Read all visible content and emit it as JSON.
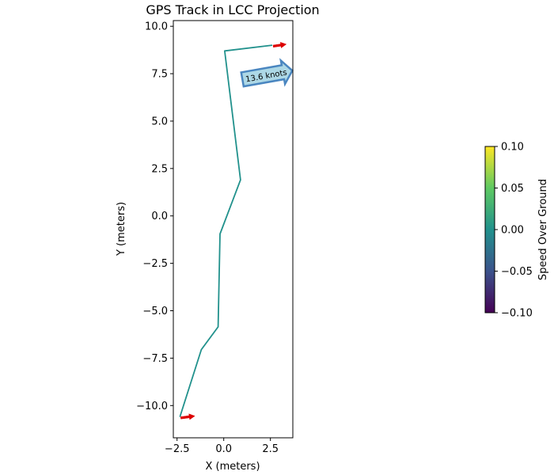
{
  "chart_data": {
    "type": "line",
    "title": "GPS Track in LCC Projection",
    "xlabel": "X (meters)",
    "ylabel": "Y (meters)",
    "xlim": [
      -2.7,
      3.7
    ],
    "ylim": [
      -11.7,
      10.3
    ],
    "xticks": [
      -2.5,
      0.0,
      2.5
    ],
    "xtick_labels": [
      "−2.5",
      "0.0",
      "2.5"
    ],
    "yticks": [
      10.0,
      7.5,
      5.0,
      2.5,
      0.0,
      -2.5,
      -5.0,
      -7.5,
      -10.0
    ],
    "ytick_labels": [
      "10.0",
      "7.5",
      "5.0",
      "2.5",
      "0.0",
      "−2.5",
      "−5.0",
      "−7.5",
      "−10.0"
    ],
    "grid": false,
    "series": [
      {
        "color": "#21918c",
        "x": [
          -2.35,
          -1.2,
          -0.3,
          -0.2,
          0.9,
          0.05,
          2.6
        ],
        "y": [
          -10.6,
          -7.05,
          -5.85,
          -0.95,
          1.9,
          8.7,
          9.0
        ]
      }
    ],
    "arrows": [
      {
        "x": -2.3,
        "y": -10.65,
        "dx": 0.75,
        "dy": 0.1,
        "color": "#dd0000"
      },
      {
        "x": 2.65,
        "y": 8.95,
        "dx": 0.7,
        "dy": 0.1,
        "color": "#dd0000"
      }
    ],
    "annotation": {
      "text": "13.6 knots",
      "x": 1.0,
      "y": 7.2,
      "rotation_deg": -10,
      "face_color": "#add8e6",
      "edge_color": "#4a86c0"
    },
    "colorbar": {
      "label": "Speed Over Ground",
      "colormap": "viridis",
      "range": [
        -0.1,
        0.1
      ],
      "ticks": [
        0.1,
        0.05,
        0.0,
        -0.05,
        -0.1
      ],
      "tick_labels": [
        "0.10",
        "0.05",
        "0.00",
        "−0.05",
        "−0.10"
      ]
    }
  }
}
